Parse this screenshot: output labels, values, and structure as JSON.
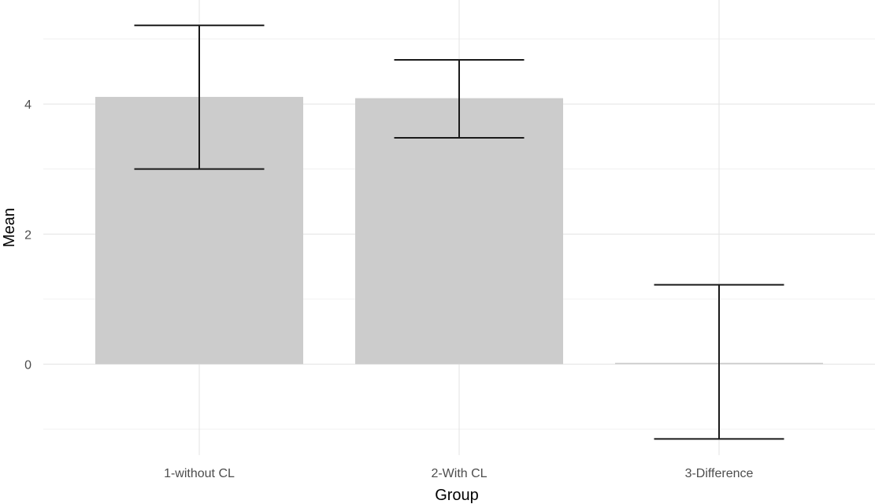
{
  "chart_data": {
    "type": "bar",
    "title": "",
    "xlabel": "Group",
    "ylabel": "Mean",
    "categories": [
      "1-without CL",
      "2-With CL",
      "3-Difference"
    ],
    "values": [
      4.11,
      4.09,
      0.02
    ],
    "error_bars": [
      {
        "low": 3.0,
        "high": 5.21
      },
      {
        "low": 3.48,
        "high": 4.68
      },
      {
        "low": -1.15,
        "high": 1.22
      }
    ],
    "ylim": [
      -1.4,
      5.6
    ],
    "y_ticks": [
      0,
      2,
      4
    ],
    "y_tick_labels": [
      "0",
      "2",
      "4"
    ],
    "grid": true,
    "colors": {
      "bar": "#cccccc",
      "error_bar": "#1a1a1a",
      "grid_major": "#e3e3e3",
      "grid_minor": "#f0f0f0",
      "tick_text": "#4d4d4d",
      "axis_title": "#000000"
    }
  }
}
